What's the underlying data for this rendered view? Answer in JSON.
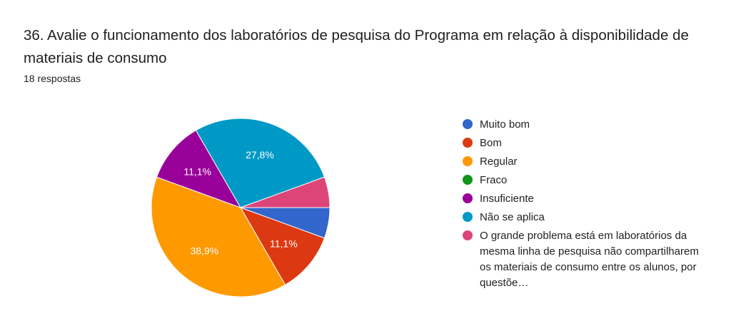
{
  "title": "36. Avalie o funcionamento dos laboratórios de pesquisa do Programa em relação à disponibilidade de materiais de consumo",
  "responses": "18 respostas",
  "chart_data": {
    "type": "pie",
    "title": "36. Avalie o funcionamento dos laboratórios de pesquisa do Programa em relação à disponibilidade de materiais de consumo",
    "legend_position": "right",
    "categories": [
      "Muito bom",
      "Bom",
      "Regular",
      "Fraco",
      "Insuficiente",
      "Não se aplica",
      "O grande problema está em laboratórios da mesma linha de pesquisa não compartilharem os materiais de consumo entre os alunos, por questõe…"
    ],
    "values": [
      1,
      2,
      7,
      0,
      2,
      5,
      1
    ],
    "data_labels": [
      "",
      "11,1%",
      "38,9%",
      "",
      "11,1%",
      "27,8%",
      ""
    ],
    "colors": [
      "#3366cc",
      "#dc3912",
      "#ff9900",
      "#109618",
      "#990099",
      "#0099c6",
      "#dd4477"
    ]
  }
}
